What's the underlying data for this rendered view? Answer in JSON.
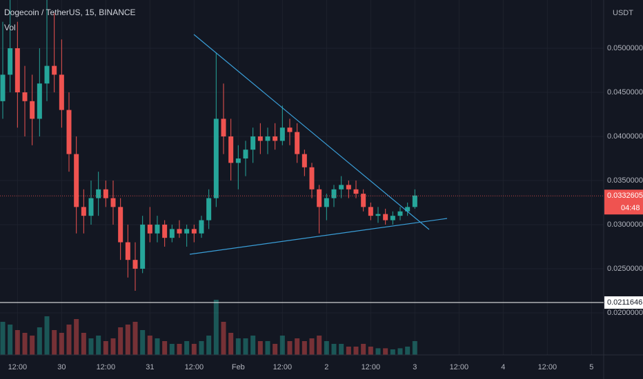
{
  "chart_data": {
    "type": "candlestick",
    "title": "Dogecoin / TetherUS, 15, BINANCE",
    "volume_label": "Vol",
    "currency": "USDT",
    "categories": [
      null,
      null,
      "12:00",
      null,
      null,
      null,
      null,
      null,
      "30",
      null,
      null,
      null,
      null,
      null,
      "12:00",
      null,
      null,
      null,
      null,
      null,
      "31",
      null,
      null,
      null,
      null,
      null,
      "12:00",
      null,
      null,
      null,
      null,
      null,
      "Feb",
      null,
      null,
      null,
      null,
      null,
      "12:00",
      null,
      null,
      null,
      null,
      null,
      "2",
      null,
      null,
      null,
      null,
      null,
      "12:00",
      null,
      null,
      null,
      null,
      null,
      "3",
      null,
      null,
      null,
      null,
      null,
      "12:00",
      null,
      null,
      null,
      null,
      null,
      "4",
      null,
      null,
      null,
      null,
      null,
      "12:00",
      null,
      null,
      null,
      null,
      null,
      "5"
    ],
    "candles": [
      [
        0.044,
        0.053,
        0.042,
        0.047
      ],
      [
        0.047,
        0.0555,
        0.045,
        0.05
      ],
      [
        0.05,
        0.053,
        0.041,
        0.045
      ],
      [
        0.045,
        0.048,
        0.04,
        0.044
      ],
      [
        0.044,
        0.047,
        0.039,
        0.042
      ],
      [
        0.042,
        0.05,
        0.04,
        0.046
      ],
      [
        0.046,
        0.0555,
        0.044,
        0.048
      ],
      [
        0.048,
        0.054,
        0.045,
        0.047
      ],
      [
        0.047,
        0.051,
        0.041,
        0.043
      ],
      [
        0.043,
        0.045,
        0.036,
        0.038
      ],
      [
        0.038,
        0.04,
        0.029,
        0.032
      ],
      [
        0.032,
        0.034,
        0.029,
        0.031
      ],
      [
        0.031,
        0.035,
        0.03,
        0.033
      ],
      [
        0.033,
        0.036,
        0.031,
        0.034
      ],
      [
        0.034,
        0.035,
        0.032,
        0.033
      ],
      [
        0.033,
        0.035,
        0.03,
        0.032
      ],
      [
        0.032,
        0.033,
        0.026,
        0.028
      ],
      [
        0.028,
        0.03,
        0.024,
        0.026
      ],
      [
        0.026,
        0.028,
        0.0225,
        0.025
      ],
      [
        0.025,
        0.031,
        0.0245,
        0.03
      ],
      [
        0.03,
        0.032,
        0.028,
        0.029
      ],
      [
        0.029,
        0.031,
        0.028,
        0.03
      ],
      [
        0.03,
        0.0305,
        0.0275,
        0.0285
      ],
      [
        0.0285,
        0.03,
        0.028,
        0.0295
      ],
      [
        0.0295,
        0.0305,
        0.0285,
        0.029
      ],
      [
        0.029,
        0.03,
        0.0275,
        0.0295
      ],
      [
        0.0295,
        0.03,
        0.028,
        0.029
      ],
      [
        0.029,
        0.031,
        0.0285,
        0.0305
      ],
      [
        0.0305,
        0.034,
        0.0295,
        0.033
      ],
      [
        0.033,
        0.0495,
        0.032,
        0.042
      ],
      [
        0.042,
        0.046,
        0.038,
        0.04
      ],
      [
        0.04,
        0.042,
        0.035,
        0.037
      ],
      [
        0.037,
        0.039,
        0.034,
        0.0375
      ],
      [
        0.0375,
        0.0395,
        0.0355,
        0.0385
      ],
      [
        0.0385,
        0.041,
        0.037,
        0.04
      ],
      [
        0.04,
        0.0415,
        0.038,
        0.0395
      ],
      [
        0.0395,
        0.041,
        0.038,
        0.04
      ],
      [
        0.04,
        0.0415,
        0.0385,
        0.0395
      ],
      [
        0.0395,
        0.0435,
        0.039,
        0.041
      ],
      [
        0.041,
        0.042,
        0.039,
        0.0405
      ],
      [
        0.0405,
        0.0415,
        0.037,
        0.038
      ],
      [
        0.038,
        0.0385,
        0.0355,
        0.0365
      ],
      [
        0.0365,
        0.037,
        0.033,
        0.034
      ],
      [
        0.034,
        0.0345,
        0.029,
        0.032
      ],
      [
        0.032,
        0.0335,
        0.0305,
        0.033
      ],
      [
        0.033,
        0.0345,
        0.032,
        0.034
      ],
      [
        0.034,
        0.0355,
        0.033,
        0.0345
      ],
      [
        0.0345,
        0.035,
        0.033,
        0.034
      ],
      [
        0.034,
        0.035,
        0.033,
        0.0335
      ],
      [
        0.0335,
        0.034,
        0.0315,
        0.032
      ],
      [
        0.032,
        0.0325,
        0.0305,
        0.031
      ],
      [
        0.031,
        0.032,
        0.0302,
        0.0312
      ],
      [
        0.0312,
        0.0318,
        0.03,
        0.0305
      ],
      [
        0.0305,
        0.0315,
        0.03,
        0.031
      ],
      [
        0.031,
        0.032,
        0.0305,
        0.0315
      ],
      [
        0.0315,
        0.0325,
        0.031,
        0.032
      ],
      [
        0.032,
        0.034,
        0.0318,
        0.0333
      ],
      null,
      null,
      null,
      null,
      null,
      null,
      null,
      null,
      null,
      null,
      null,
      null,
      null,
      null,
      null,
      null,
      null,
      null,
      null,
      null,
      null,
      null,
      null,
      null
    ],
    "volumes": [
      60,
      55,
      45,
      40,
      35,
      50,
      70,
      45,
      40,
      55,
      65,
      40,
      30,
      35,
      25,
      30,
      50,
      55,
      60,
      45,
      35,
      30,
      25,
      20,
      20,
      25,
      20,
      25,
      35,
      100,
      60,
      40,
      30,
      30,
      35,
      25,
      25,
      20,
      35,
      25,
      30,
      25,
      30,
      35,
      25,
      20,
      20,
      15,
      15,
      20,
      15,
      12,
      12,
      10,
      12,
      15,
      25,
      null,
      null,
      null,
      null,
      null,
      null,
      null,
      null,
      null,
      null,
      null,
      null,
      null,
      null,
      null,
      null,
      null,
      null,
      null,
      null,
      null,
      null,
      null,
      null
    ],
    "ylim": [
      0.01523,
      0.05547
    ],
    "yticks": [
      {
        "value": 0.02,
        "label": "0.0200000"
      },
      {
        "value": 0.025,
        "label": "0.0250000"
      },
      {
        "value": 0.03,
        "label": "0.0300000"
      },
      {
        "value": 0.035,
        "label": "0.0350000"
      },
      {
        "value": 0.04,
        "label": "0.0400000"
      },
      {
        "value": 0.045,
        "label": "0.0450000"
      },
      {
        "value": 0.05,
        "label": "0.0500000"
      }
    ],
    "last_price": 0.0332605,
    "countdown": "04:48",
    "horizontal_line": 0.0211646,
    "up_color": "#26a69a",
    "down_color": "#ef5350",
    "grid": true
  }
}
